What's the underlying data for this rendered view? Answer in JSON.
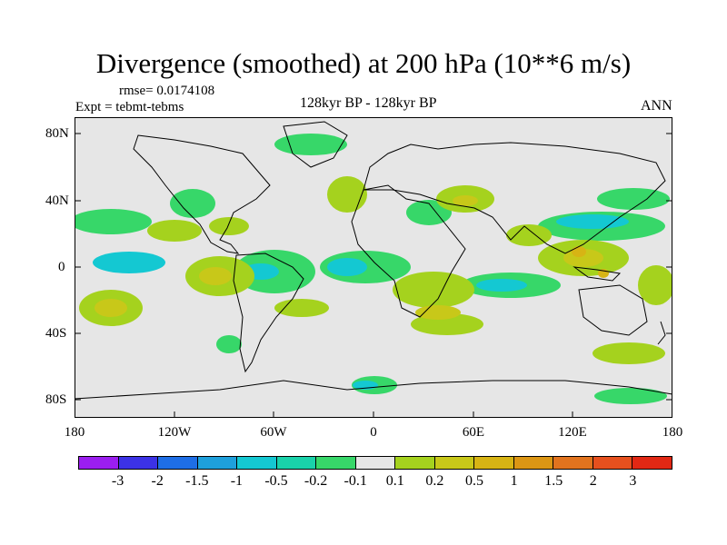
{
  "title": "Divergence (smoothed) at 200 hPa (10**6 m/s)",
  "rmse": "rmse= 0.0174108",
  "expt": "Expt = tebmt-tebms",
  "subtitle": "128kyr BP - 128kyr BP",
  "season": "ANN",
  "lat_labels": [
    "80N",
    "40N",
    "0",
    "40S",
    "80S"
  ],
  "lon_labels": [
    "180",
    "120W",
    "60W",
    "0",
    "60E",
    "120E",
    "180"
  ],
  "colorbar": {
    "colors": [
      "#9b1ef0",
      "#3c32e6",
      "#1e6ee6",
      "#1ea0dc",
      "#14c8d2",
      "#19d2aa",
      "#37d769",
      "#e6e6e6",
      "#a5d21e",
      "#c8c819",
      "#d7b414",
      "#dc9614",
      "#e1731e",
      "#e6501e",
      "#e12814"
    ],
    "labels": [
      "-3",
      "-2",
      "-1.5",
      "-1",
      "-0.5",
      "-0.2",
      "-0.1",
      "0.1",
      "0.2",
      "0.5",
      "1",
      "1.5",
      "2",
      "3"
    ]
  }
}
